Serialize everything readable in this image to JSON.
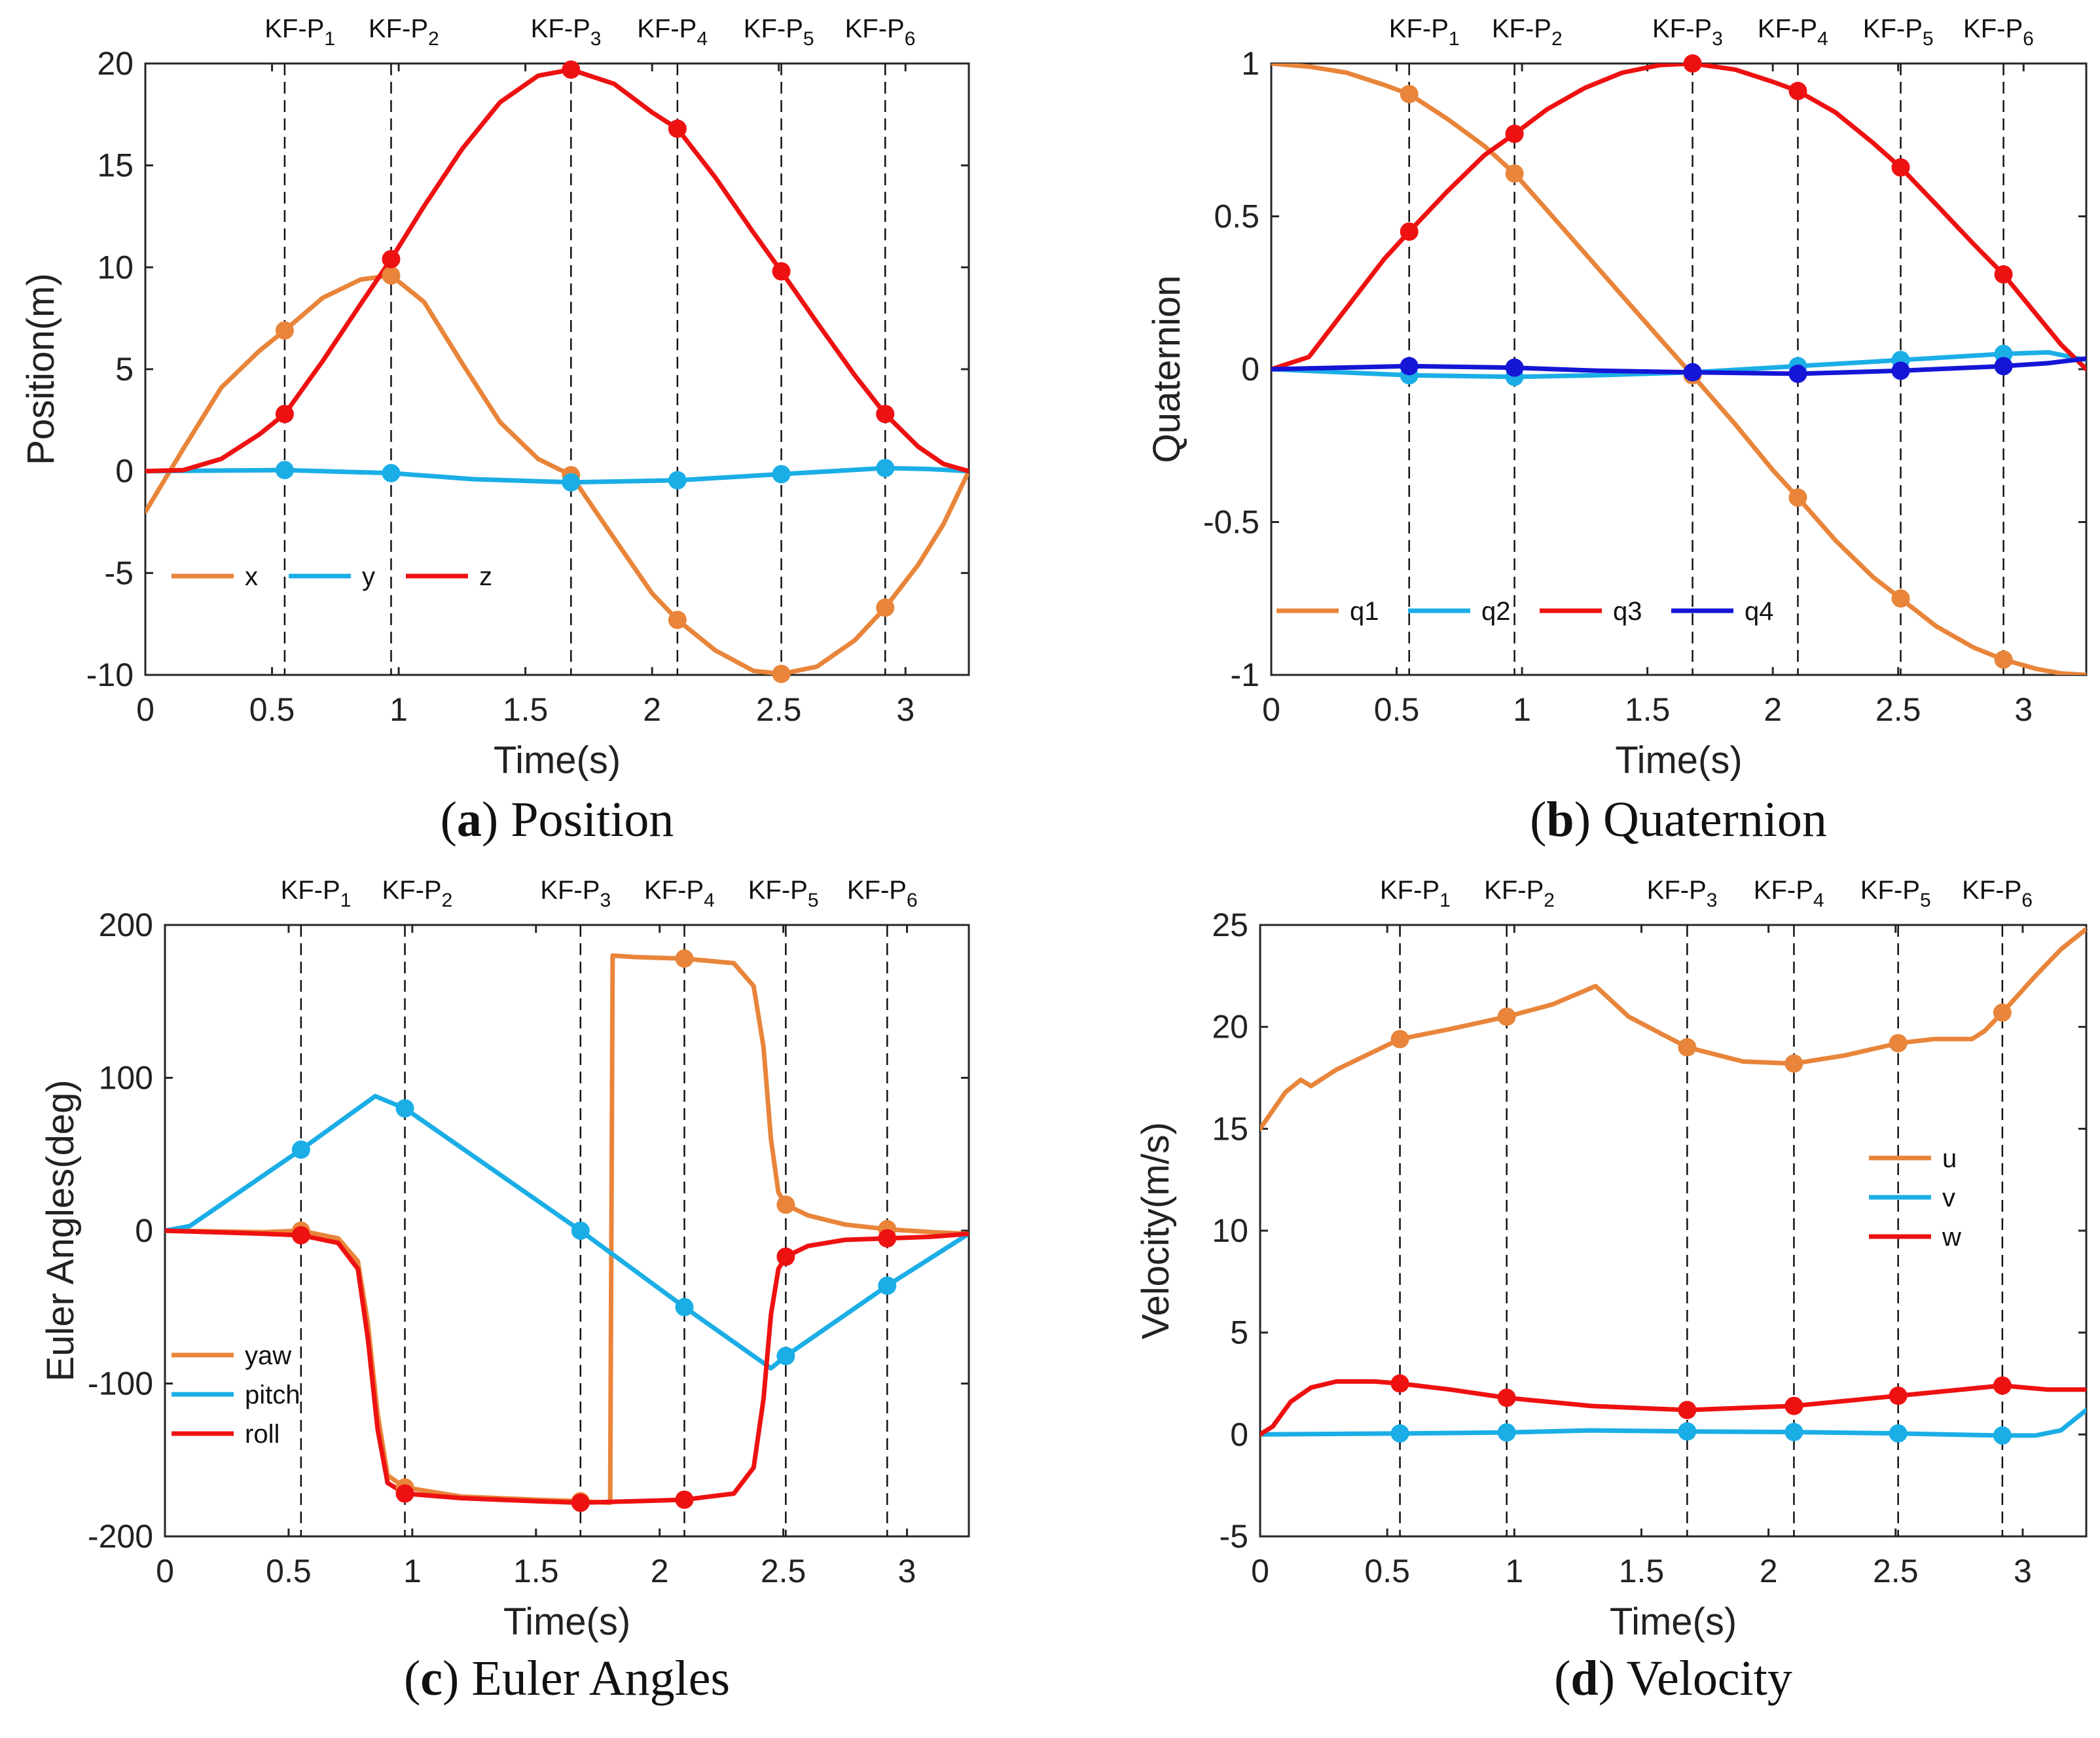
{
  "colors": {
    "orange": "#E8853A",
    "cyan": "#1BAEE6",
    "red": "#EE1111",
    "blue": "#1515D6"
  },
  "keyframe_labels": [
    "KF-P1",
    "KF-P2",
    "KF-P3",
    "KF-P4",
    "KF-P5",
    "KF-P6"
  ],
  "chart_data": [
    {
      "type": "line",
      "panel": "a",
      "caption_letter": "a",
      "caption_text": "Position",
      "xlabel": "Time(s)",
      "ylabel": "Position(m)",
      "xlim": [
        0,
        3.25
      ],
      "ylim": [
        -10,
        20
      ],
      "xticks": [
        0,
        0.5,
        1,
        1.5,
        2,
        2.5,
        3
      ],
      "yticks": [
        -10,
        -5,
        0,
        5,
        10,
        15,
        20
      ],
      "keyframe_times": [
        0.55,
        0.97,
        1.68,
        2.1,
        2.51,
        2.92
      ],
      "kf_label_positions": [
        0.61,
        1.02,
        1.66,
        2.08,
        2.5,
        2.9
      ],
      "legend": {
        "placement": "lower-left",
        "orientation": "horizontal"
      },
      "series": [
        {
          "name": "x",
          "color": "orange",
          "t": [
            0,
            0.15,
            0.3,
            0.45,
            0.55,
            0.7,
            0.85,
            0.97,
            1.1,
            1.25,
            1.4,
            1.55,
            1.68,
            1.85,
            2.0,
            2.1,
            2.25,
            2.4,
            2.51,
            2.65,
            2.8,
            2.92,
            3.05,
            3.15,
            3.25
          ],
          "values": [
            -2,
            1.1,
            4.1,
            5.9,
            6.9,
            8.5,
            9.4,
            9.6,
            8.3,
            5.3,
            2.4,
            0.6,
            -0.2,
            -3.3,
            -6.0,
            -7.3,
            -8.8,
            -9.8,
            -9.95,
            -9.6,
            -8.3,
            -6.7,
            -4.6,
            -2.6,
            0
          ],
          "markers": [
            6.9,
            9.6,
            -0.2,
            -7.3,
            -9.95,
            -6.7
          ]
        },
        {
          "name": "y",
          "color": "cyan",
          "t": [
            0,
            0.55,
            0.97,
            1.3,
            1.68,
            2.1,
            2.51,
            2.92,
            3.1,
            3.25
          ],
          "values": [
            0,
            0.05,
            -0.1,
            -0.4,
            -0.55,
            -0.45,
            -0.15,
            0.15,
            0.1,
            0
          ],
          "markers": [
            0.05,
            -0.1,
            -0.55,
            -0.45,
            -0.15,
            0.15
          ]
        },
        {
          "name": "z",
          "color": "red",
          "t": [
            0,
            0.15,
            0.3,
            0.45,
            0.55,
            0.7,
            0.85,
            0.97,
            1.1,
            1.25,
            1.4,
            1.55,
            1.68,
            1.85,
            2.0,
            2.1,
            2.25,
            2.4,
            2.51,
            2.65,
            2.8,
            2.92,
            3.05,
            3.15,
            3.25
          ],
          "values": [
            0,
            0.05,
            0.6,
            1.8,
            2.8,
            5.4,
            8.2,
            10.4,
            13.0,
            15.8,
            18.1,
            19.4,
            19.7,
            19.0,
            17.6,
            16.8,
            14.4,
            11.7,
            9.8,
            7.3,
            4.7,
            2.8,
            1.2,
            0.35,
            0
          ],
          "markers": [
            2.8,
            10.4,
            19.7,
            16.8,
            9.8,
            2.8
          ]
        }
      ]
    },
    {
      "type": "line",
      "panel": "b",
      "caption_letter": "b",
      "caption_text": "Quaternion",
      "xlabel": "Time(s)",
      "ylabel": "Quaternion",
      "xlim": [
        0,
        3.25
      ],
      "ylim": [
        -1,
        1
      ],
      "xticks": [
        0,
        0.5,
        1,
        1.5,
        2,
        2.5,
        3
      ],
      "yticks": [
        -1,
        -0.5,
        0,
        0.5,
        1
      ],
      "keyframe_times": [
        0.55,
        0.97,
        1.68,
        2.1,
        2.51,
        2.92
      ],
      "kf_label_positions": [
        0.61,
        1.02,
        1.66,
        2.08,
        2.5,
        2.9
      ],
      "legend": {
        "placement": "lower-left",
        "orientation": "horizontal"
      },
      "series": [
        {
          "name": "q1",
          "color": "orange",
          "t": [
            0,
            0.15,
            0.3,
            0.45,
            0.55,
            0.7,
            0.85,
            0.97,
            1.1,
            1.25,
            1.4,
            1.55,
            1.68,
            1.85,
            2.0,
            2.1,
            2.25,
            2.4,
            2.51,
            2.65,
            2.8,
            2.92,
            3.05,
            3.15,
            3.25
          ],
          "values": [
            1,
            0.99,
            0.97,
            0.93,
            0.9,
            0.82,
            0.73,
            0.64,
            0.52,
            0.38,
            0.24,
            0.1,
            -0.02,
            -0.18,
            -0.33,
            -0.42,
            -0.56,
            -0.68,
            -0.75,
            -0.84,
            -0.91,
            -0.95,
            -0.98,
            -0.995,
            -1
          ],
          "markers": [
            0.9,
            0.64,
            -0.02,
            -0.42,
            -0.75,
            -0.95
          ]
        },
        {
          "name": "q2",
          "color": "cyan",
          "t": [
            0,
            0.55,
            0.97,
            1.3,
            1.68,
            2.1,
            2.51,
            2.92,
            3.1,
            3.25
          ],
          "values": [
            0,
            -0.02,
            -0.025,
            -0.02,
            -0.01,
            0.01,
            0.03,
            0.05,
            0.055,
            0.03
          ],
          "markers": [
            -0.02,
            -0.025,
            -0.01,
            0.01,
            0.03,
            0.05
          ]
        },
        {
          "name": "q3",
          "color": "red",
          "t": [
            0,
            0.15,
            0.3,
            0.45,
            0.55,
            0.7,
            0.85,
            0.97,
            1.1,
            1.25,
            1.4,
            1.55,
            1.68,
            1.85,
            2.0,
            2.1,
            2.25,
            2.4,
            2.51,
            2.65,
            2.8,
            2.92,
            3.05,
            3.15,
            3.25
          ],
          "values": [
            0,
            0.04,
            0.2,
            0.36,
            0.45,
            0.58,
            0.7,
            0.77,
            0.85,
            0.92,
            0.97,
            0.995,
            1,
            0.98,
            0.94,
            0.91,
            0.84,
            0.74,
            0.66,
            0.54,
            0.41,
            0.31,
            0.18,
            0.08,
            0
          ],
          "markers": [
            0.45,
            0.77,
            1,
            0.91,
            0.66,
            0.31
          ]
        },
        {
          "name": "q4",
          "color": "blue",
          "t": [
            0,
            0.55,
            0.97,
            1.3,
            1.68,
            2.1,
            2.51,
            2.92,
            3.1,
            3.25
          ],
          "values": [
            0,
            0.01,
            0.005,
            -0.005,
            -0.01,
            -0.015,
            -0.005,
            0.01,
            0.02,
            0.035
          ],
          "markers": [
            0.01,
            0.005,
            -0.01,
            -0.015,
            -0.005,
            0.01
          ]
        }
      ]
    },
    {
      "type": "line",
      "panel": "c",
      "caption_letter": "c",
      "caption_text": "Euler Angles",
      "xlabel": "Time(s)",
      "ylabel": "Euler Angles(deg)",
      "xlim": [
        0,
        3.25
      ],
      "ylim": [
        -200,
        200
      ],
      "xticks": [
        0,
        0.5,
        1,
        1.5,
        2,
        2.5,
        3
      ],
      "yticks": [
        -200,
        -100,
        0,
        100,
        200
      ],
      "keyframe_times": [
        0.55,
        0.97,
        1.68,
        2.1,
        2.51,
        2.92
      ],
      "kf_label_positions": [
        0.61,
        1.02,
        1.66,
        2.08,
        2.5,
        2.9
      ],
      "legend": {
        "placement": "lower-left",
        "orientation": "vertical"
      },
      "series": [
        {
          "name": "yaw",
          "color": "orange",
          "t": [
            0,
            0.4,
            0.55,
            0.7,
            0.78,
            0.82,
            0.86,
            0.9,
            0.97,
            1.2,
            1.5,
            1.68,
            1.8,
            1.8,
            1.81,
            1.9,
            2.1,
            2.3,
            2.38,
            2.42,
            2.45,
            2.48,
            2.51,
            2.6,
            2.75,
            2.92,
            3.1,
            3.25
          ],
          "values": [
            0,
            -1,
            0,
            -5,
            -20,
            -60,
            -120,
            -160,
            -168,
            -174,
            -176,
            -177,
            -178,
            -178,
            180,
            179,
            178,
            175,
            160,
            120,
            60,
            25,
            17,
            10,
            4,
            1,
            -1,
            -2
          ],
          "markers": [
            0,
            -168,
            -177,
            178,
            17,
            1
          ]
        },
        {
          "name": "pitch",
          "color": "cyan",
          "t": [
            0,
            0.1,
            0.55,
            0.85,
            0.97,
            1.68,
            2.1,
            2.45,
            2.51,
            2.92,
            3.25
          ],
          "values": [
            0,
            3,
            53,
            88,
            80,
            0,
            -50,
            -90,
            -82,
            -36,
            -2
          ],
          "markers": [
            53,
            80,
            0,
            -50,
            -82,
            -36
          ]
        },
        {
          "name": "roll",
          "color": "red",
          "t": [
            0,
            0.4,
            0.55,
            0.7,
            0.78,
            0.82,
            0.86,
            0.9,
            0.97,
            1.2,
            1.5,
            1.68,
            1.9,
            2.1,
            2.3,
            2.38,
            2.42,
            2.45,
            2.48,
            2.51,
            2.6,
            2.75,
            2.92,
            3.1,
            3.25
          ],
          "values": [
            0,
            -2,
            -3,
            -8,
            -25,
            -70,
            -130,
            -165,
            -172,
            -175,
            -177,
            -178,
            -177,
            -176,
            -172,
            -155,
            -110,
            -55,
            -25,
            -17,
            -10,
            -6,
            -5,
            -4,
            -2
          ],
          "markers": [
            -3,
            -172,
            -178,
            -176,
            -17,
            -5
          ]
        }
      ]
    },
    {
      "type": "line",
      "panel": "d",
      "caption_letter": "d",
      "caption_text": "Velocity",
      "xlabel": "Time(s)",
      "ylabel": "Velocity(m/s)",
      "xlim": [
        0,
        3.25
      ],
      "ylim": [
        -5,
        25
      ],
      "xticks": [
        0,
        0.5,
        1,
        1.5,
        2,
        2.5,
        3
      ],
      "yticks": [
        -5,
        0,
        5,
        10,
        15,
        20,
        25
      ],
      "keyframe_times": [
        0.55,
        0.97,
        1.68,
        2.1,
        2.51,
        2.92
      ],
      "kf_label_positions": [
        0.61,
        1.02,
        1.66,
        2.08,
        2.5,
        2.9
      ],
      "legend": {
        "placement": "right",
        "orientation": "vertical"
      },
      "series": [
        {
          "name": "u",
          "color": "orange",
          "t": [
            0,
            0.1,
            0.16,
            0.2,
            0.3,
            0.45,
            0.55,
            0.75,
            0.97,
            1.15,
            1.32,
            1.45,
            1.68,
            1.9,
            2.1,
            2.3,
            2.51,
            2.65,
            2.8,
            2.85,
            2.92,
            3.05,
            3.15,
            3.25
          ],
          "values": [
            15,
            16.8,
            17.4,
            17.1,
            17.9,
            18.8,
            19.4,
            19.9,
            20.5,
            21.1,
            22.0,
            20.5,
            19.0,
            18.3,
            18.2,
            18.6,
            19.2,
            19.4,
            19.4,
            19.8,
            20.7,
            22.5,
            23.8,
            24.8
          ],
          "markers": [
            19.4,
            20.5,
            19.0,
            18.2,
            19.2,
            20.7
          ]
        },
        {
          "name": "v",
          "color": "cyan",
          "t": [
            0,
            0.55,
            0.97,
            1.3,
            1.68,
            2.1,
            2.51,
            2.92,
            3.05,
            3.15,
            3.25
          ],
          "values": [
            0,
            0.05,
            0.1,
            0.2,
            0.15,
            0.12,
            0.05,
            -0.05,
            -0.05,
            0.2,
            1.2
          ],
          "markers": [
            0.05,
            0.1,
            0.15,
            0.12,
            0.05,
            -0.05
          ]
        },
        {
          "name": "w",
          "color": "red",
          "t": [
            0,
            0.05,
            0.12,
            0.2,
            0.3,
            0.45,
            0.55,
            0.75,
            0.97,
            1.3,
            1.68,
            2.1,
            2.51,
            2.92,
            3.1,
            3.25
          ],
          "values": [
            0,
            0.4,
            1.6,
            2.3,
            2.6,
            2.6,
            2.5,
            2.2,
            1.8,
            1.4,
            1.2,
            1.4,
            1.9,
            2.4,
            2.2,
            2.2
          ],
          "markers": [
            2.5,
            1.8,
            1.2,
            1.4,
            1.9,
            2.4
          ]
        }
      ]
    }
  ]
}
